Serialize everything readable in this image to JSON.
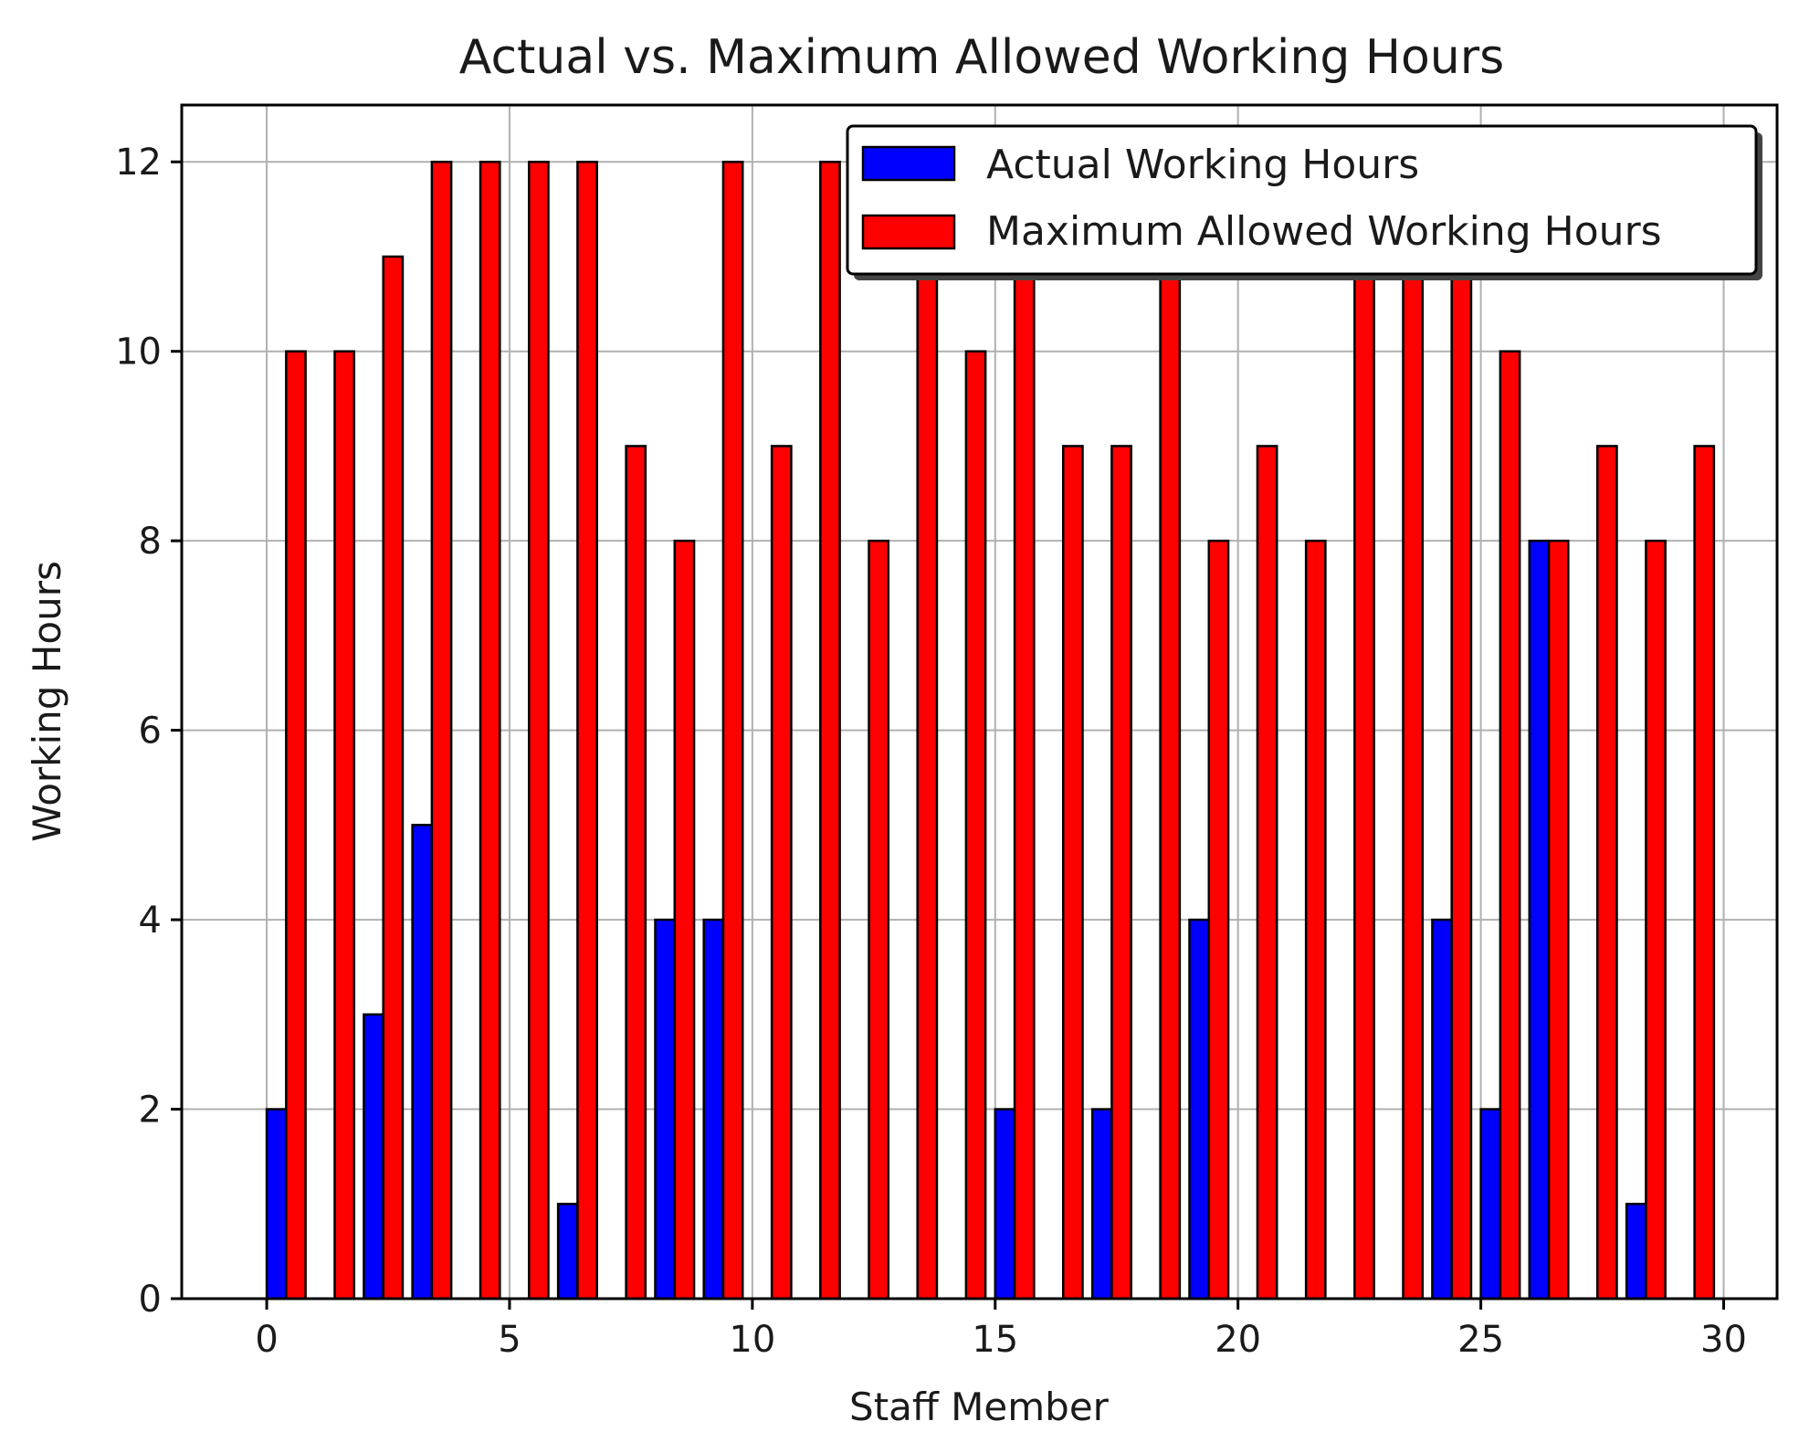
{
  "chart_data": {
    "type": "bar",
    "title": "Actual vs. Maximum Allowed Working Hours",
    "xlabel": "Staff Member",
    "ylabel": "Working Hours",
    "x": [
      0,
      1,
      2,
      3,
      4,
      5,
      6,
      7,
      8,
      9,
      10,
      11,
      12,
      13,
      14,
      15,
      16,
      17,
      18,
      19,
      20,
      21,
      22,
      23,
      24,
      25,
      26,
      27,
      28,
      29
    ],
    "series": [
      {
        "name": "Actual Working Hours",
        "color": "#0000ff",
        "values": [
          2,
          0,
          3,
          5,
          0,
          0,
          1,
          0,
          4,
          4,
          0,
          0,
          0,
          0,
          0,
          2,
          0,
          2,
          0,
          4,
          0,
          0,
          0,
          0,
          4,
          2,
          8,
          0,
          1,
          0
        ]
      },
      {
        "name": "Maximum Allowed Working Hours",
        "color": "#ff0000",
        "values": [
          10,
          10,
          11,
          12,
          12,
          12,
          12,
          9,
          8,
          12,
          9,
          12,
          8,
          11,
          10,
          11,
          9,
          9,
          11,
          8,
          9,
          8,
          11,
          11,
          11,
          10,
          8,
          9,
          8,
          9
        ]
      }
    ],
    "xlim": [
      -1.75,
      31.1
    ],
    "ylim": [
      0,
      12.6
    ],
    "xticks": [
      0,
      5,
      10,
      15,
      20,
      25,
      30
    ],
    "yticks": [
      0,
      2,
      4,
      6,
      8,
      10,
      12
    ],
    "grid": true,
    "legend_position": "top-right"
  }
}
